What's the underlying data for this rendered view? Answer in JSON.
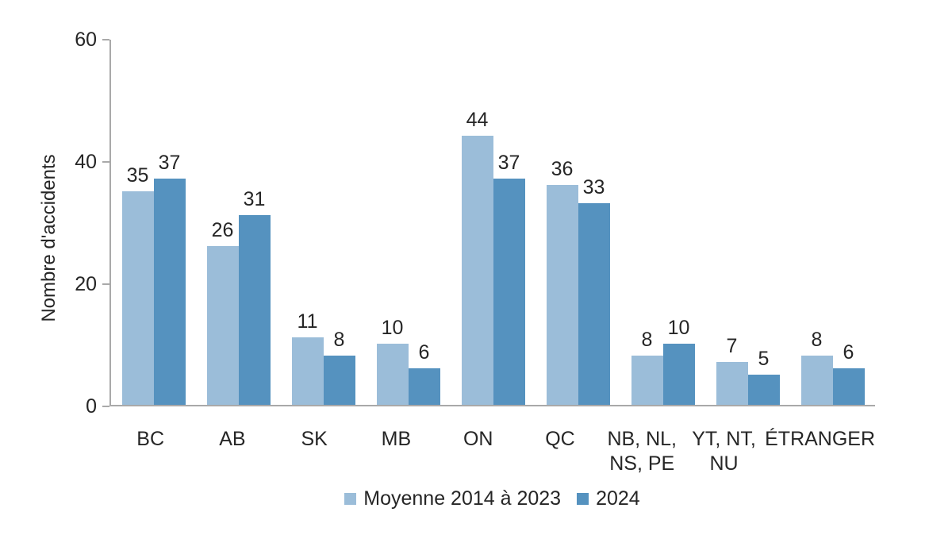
{
  "chart_data": {
    "type": "bar",
    "title": "",
    "xlabel": "",
    "ylabel": "Nombre d'accidents",
    "ylim": [
      0,
      60
    ],
    "yticks": [
      0,
      20,
      40,
      60
    ],
    "grid": false,
    "legend_position": "bottom",
    "data_labels": true,
    "categories": [
      "BC",
      "AB",
      "SK",
      "MB",
      "ON",
      "QC",
      "NB, NL,\nNS, PE",
      "YT, NT,\nNU",
      "ÉTRANGER"
    ],
    "series": [
      {
        "name": "Moyenne 2014 à 2023",
        "color": "#9bbdd9",
        "values": [
          35,
          26,
          11,
          10,
          44,
          36,
          8,
          7,
          8
        ]
      },
      {
        "name": "2024",
        "color": "#5592bf",
        "values": [
          37,
          31,
          8,
          6,
          37,
          33,
          10,
          5,
          6
        ]
      }
    ],
    "axis_color": "#a9a9a9",
    "text_color": "#262626"
  }
}
